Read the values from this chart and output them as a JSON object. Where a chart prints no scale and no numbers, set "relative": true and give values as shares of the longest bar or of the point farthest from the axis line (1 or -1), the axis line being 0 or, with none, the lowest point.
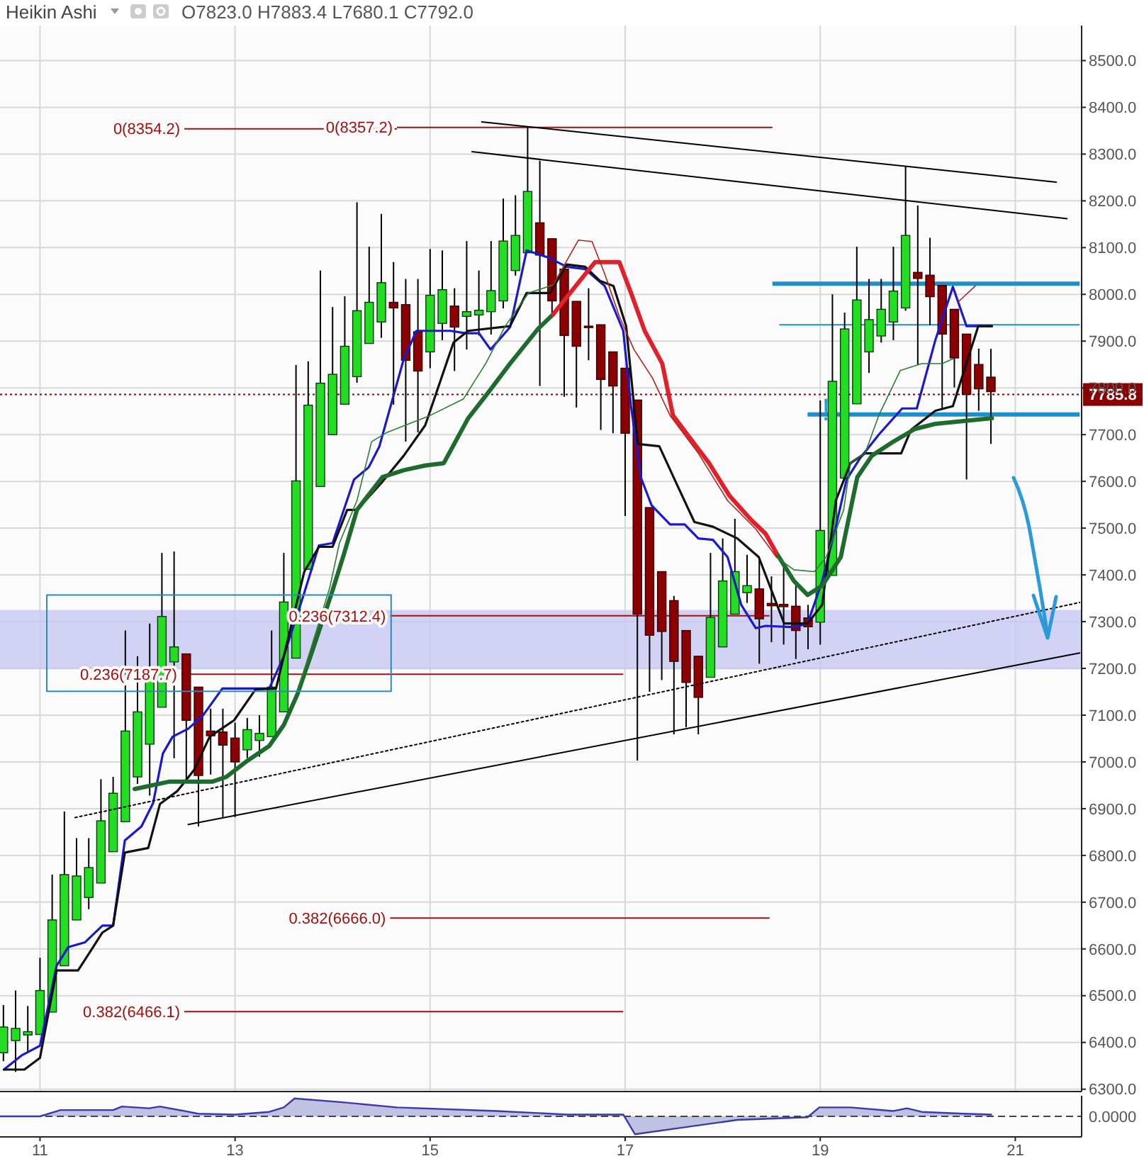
{
  "chart_data": [
    {
      "type": "candlestick",
      "title": "Heikin Ashi",
      "subtitle": "O7823.0 H7883.4 L7680.1 C7792.0",
      "x": [
        10.625,
        10.75,
        10.875,
        11,
        11.125,
        11.25,
        11.375,
        11.5,
        11.625,
        11.75,
        11.875,
        12,
        12.125,
        12.25,
        12.375,
        12.5,
        12.625,
        12.75,
        12.875,
        13,
        13.125,
        13.25,
        13.375,
        13.5,
        13.625,
        13.75,
        13.875,
        14,
        14.125,
        14.25,
        14.375,
        14.5,
        14.625,
        14.75,
        14.875,
        15,
        15.125,
        15.25,
        15.375,
        15.5,
        15.625,
        15.75,
        15.875,
        16,
        16.125,
        16.25,
        16.375,
        16.5,
        16.625,
        16.75,
        16.875,
        17,
        17.125,
        17.25,
        17.375,
        17.5,
        17.625,
        17.75,
        17.875,
        18,
        18.125,
        18.25,
        18.375,
        18.5,
        18.625,
        18.75,
        18.875,
        19,
        19.125,
        19.25,
        19.375,
        19.5,
        19.625,
        19.75,
        19.875,
        20,
        20.125,
        20.25,
        20.375,
        20.5,
        20.625,
        20.75
      ],
      "ohlc": [
        [
          6378,
          6480,
          6360,
          6433
        ],
        [
          6404,
          6511,
          6337,
          6430
        ],
        [
          6416,
          6478,
          6378,
          6423
        ],
        [
          6417,
          6581,
          6417,
          6511
        ],
        [
          6465,
          6759,
          6465,
          6662
        ],
        [
          6564,
          6894,
          6564,
          6759
        ],
        [
          6662,
          6837,
          6662,
          6756
        ],
        [
          6710,
          6837,
          6685,
          6774
        ],
        [
          6741,
          6963,
          6741,
          6874
        ],
        [
          6808,
          6968,
          6808,
          6933
        ],
        [
          6872,
          7281,
          6872,
          7066
        ],
        [
          6968,
          7226,
          6953,
          7107
        ],
        [
          7038,
          7296,
          6928,
          7195
        ],
        [
          7117,
          7447,
          7117,
          7311
        ],
        [
          7214,
          7450,
          7008,
          7246
        ],
        [
          7231,
          7231,
          6963,
          7089
        ],
        [
          7160,
          7160,
          6862,
          6971
        ],
        [
          7066,
          7114,
          6973,
          7056
        ],
        [
          7064,
          7114,
          6882,
          7036
        ],
        [
          7051,
          7084,
          6882,
          7000
        ],
        [
          7026,
          7094,
          7008,
          7069
        ],
        [
          7046,
          7100,
          7011,
          7061
        ],
        [
          7054,
          7281,
          7054,
          7160
        ],
        [
          7107,
          7447,
          7107,
          7342
        ],
        [
          7222,
          7849,
          7222,
          7601
        ],
        [
          7412,
          7857,
          7412,
          7763
        ],
        [
          7589,
          8051,
          7589,
          7810
        ],
        [
          7700,
          7973,
          7700,
          7829
        ],
        [
          7765,
          7996,
          7765,
          7889
        ],
        [
          7824,
          8197,
          7811,
          7965
        ],
        [
          7895,
          8102,
          7895,
          7983
        ],
        [
          7941,
          8172,
          7907,
          8025
        ],
        [
          7983,
          8069,
          7764,
          7971
        ],
        [
          7978,
          8033,
          7685,
          7859
        ],
        [
          7920,
          8033,
          7705,
          7836
        ],
        [
          7877,
          8097,
          7842,
          7998
        ],
        [
          7938,
          8094,
          7902,
          8010
        ],
        [
          7975,
          8013,
          7836,
          7930
        ],
        [
          7953,
          8114,
          7882,
          7963
        ],
        [
          7956,
          8051,
          7912,
          7966
        ],
        [
          7963,
          8114,
          7914,
          8008
        ],
        [
          7986,
          8205,
          7970,
          8114
        ],
        [
          8051,
          8212,
          8040,
          8126
        ],
        [
          8089,
          8359,
          8089,
          8220
        ],
        [
          8153,
          8286,
          7804,
          8084
        ],
        [
          8119,
          8119,
          7950,
          7986
        ],
        [
          8054,
          8054,
          7781,
          7912
        ],
        [
          7985,
          7985,
          7758,
          7889
        ],
        [
          7932,
          8013,
          7859,
          7930
        ],
        [
          7935,
          7935,
          7710,
          7818
        ],
        [
          7877,
          7877,
          7703,
          7804
        ],
        [
          7842,
          7842,
          7526,
          7703
        ],
        [
          7774,
          7774,
          7003,
          7316
        ],
        [
          7544,
          7544,
          7150,
          7271
        ],
        [
          7407,
          7407,
          7175,
          7279
        ],
        [
          7345,
          7355,
          7059,
          7215
        ],
        [
          7281,
          7281,
          7074,
          7170
        ],
        [
          7226,
          7226,
          7059,
          7138
        ],
        [
          7181,
          7447,
          7181,
          7309
        ],
        [
          7246,
          7478,
          7246,
          7387
        ],
        [
          7316,
          7520,
          7316,
          7407
        ],
        [
          7362,
          7443,
          7340,
          7377
        ],
        [
          7370,
          7433,
          7210,
          7306
        ],
        [
          7339,
          7397,
          7256,
          7334
        ],
        [
          7337,
          7420,
          7251,
          7332
        ],
        [
          7333,
          7387,
          7220,
          7281
        ],
        [
          7308,
          7336,
          7241,
          7289
        ],
        [
          7299,
          7773,
          7251,
          7495
        ],
        [
          7399,
          8000,
          7399,
          7814
        ],
        [
          7607,
          7961,
          7607,
          7926
        ],
        [
          7766,
          8102,
          7766,
          7988
        ],
        [
          7877,
          8033,
          7832,
          7946
        ],
        [
          7911,
          8033,
          7897,
          7968
        ],
        [
          7941,
          8102,
          7902,
          8007
        ],
        [
          7971,
          8274,
          7965,
          8126
        ],
        [
          8047,
          8190,
          7850,
          8034
        ],
        [
          8041,
          8121,
          7934,
          7995
        ],
        [
          8019,
          8019,
          7756,
          7915
        ],
        [
          7968,
          7968,
          7801,
          7864
        ],
        [
          7915,
          7915,
          7604,
          7786
        ],
        [
          7850,
          7884,
          7751,
          7798
        ],
        [
          7823,
          7883.4,
          7680.1,
          7792
        ]
      ],
      "colors": [
        "#22dd22",
        "#22dd22",
        "#22dd22",
        "#22dd22",
        "#22dd22",
        "#22dd22",
        "#22dd22",
        "#22dd22",
        "#22dd22",
        "#22dd22",
        "#22dd22",
        "#22dd22",
        "#22dd22",
        "#22dd22",
        "#22dd22",
        "#8b0000",
        "#8b0000",
        "#8b0000",
        "#8b0000",
        "#8b0000",
        "#22dd22",
        "#22dd22",
        "#22dd22",
        "#22dd22",
        "#22dd22",
        "#22dd22",
        "#22dd22",
        "#22dd22",
        "#22dd22",
        "#22dd22",
        "#22dd22",
        "#22dd22",
        "#8b0000",
        "#8b0000",
        "#8b0000",
        "#22dd22",
        "#22dd22",
        "#8b0000",
        "#22dd22",
        "#22dd22",
        "#22dd22",
        "#22dd22",
        "#22dd22",
        "#22dd22",
        "#8b0000",
        "#8b0000",
        "#8b0000",
        "#8b0000",
        "#8b0000",
        "#8b0000",
        "#8b0000",
        "#8b0000",
        "#8b0000",
        "#8b0000",
        "#8b0000",
        "#8b0000",
        "#8b0000",
        "#8b0000",
        "#22dd22",
        "#22dd22",
        "#22dd22",
        "#22dd22",
        "#8b0000",
        "#8b0000",
        "#8b0000",
        "#8b0000",
        "#8b0000",
        "#22dd22",
        "#22dd22",
        "#22dd22",
        "#22dd22",
        "#22dd22",
        "#22dd22",
        "#22dd22",
        "#22dd22",
        "#8b0000",
        "#8b0000",
        "#8b0000",
        "#8b0000",
        "#8b0000",
        "#8b0000",
        "#8b0000"
      ],
      "series": [
        {
          "type": "line",
          "color": "#1a1acc",
          "x": [
            10.63,
            10.81,
            11.0,
            11.17,
            11.29,
            11.46,
            11.64,
            11.75,
            11.87,
            12.04,
            12.16,
            12.26,
            12.36,
            12.52,
            12.67,
            12.87,
            13.35,
            13.5,
            13.71,
            13.86,
            14.0,
            14.22,
            14.37,
            14.48,
            14.73,
            14.86,
            15.21,
            15.36,
            15.5,
            15.62,
            15.82,
            15.99,
            16.21,
            16.4,
            16.59,
            16.79,
            16.98,
            17.06,
            17.16,
            17.27,
            17.46,
            17.61,
            17.75,
            17.9,
            18.05,
            18.19,
            18.34,
            18.44,
            18.73,
            18.87,
            19.02,
            19.16,
            19.27,
            19.41,
            19.6,
            19.84,
            19.99,
            20.18,
            20.36,
            20.5,
            20.76
          ],
          "values": [
            6342,
            6372,
            6393,
            6564,
            6604,
            6614,
            6650,
            6650,
            6832,
            6862,
            6912,
            7018,
            7054,
            7071,
            7099,
            7157,
            7157,
            7226,
            7362,
            7463,
            7468,
            7604,
            7630,
            7675,
            7862,
            7922,
            7922,
            7917,
            7917,
            7882,
            7930,
            8094,
            8079,
            8059,
            8054,
            8018,
            7922,
            7761,
            7609,
            7549,
            7508,
            7508,
            7478,
            7475,
            7438,
            7336,
            7286,
            7291,
            7288,
            7296,
            7387,
            7503,
            7604,
            7650,
            7700,
            7756,
            7756,
            7902,
            8016,
            7932,
            7932
          ]
        },
        {
          "type": "line",
          "color": "#111111",
          "x": [
            10.63,
            10.84,
            11.0,
            11.17,
            11.39,
            11.53,
            11.64,
            11.75,
            11.87,
            12.11,
            12.23,
            12.41,
            12.58,
            12.74,
            12.99,
            13.21,
            13.42,
            13.71,
            13.86,
            14.0,
            14.15,
            14.25,
            14.51,
            14.73,
            14.95,
            15.24,
            15.39,
            15.82,
            15.99,
            16.23,
            16.4,
            16.59,
            16.74,
            16.88,
            17.01,
            17.13,
            17.35,
            17.54,
            17.71,
            17.9,
            18.15,
            18.37,
            18.63,
            18.87,
            19.02,
            19.16,
            19.31,
            19.46,
            19.83,
            19.93,
            20.18,
            20.36,
            20.62,
            20.76
          ],
          "values": [
            6342,
            6342,
            6367,
            6554,
            6554,
            6599,
            6635,
            6650,
            6806,
            6816,
            6910,
            6938,
            6983,
            7054,
            7089,
            7155,
            7157,
            7407,
            7460,
            7460,
            7539,
            7539,
            7599,
            7655,
            7720,
            7897,
            7922,
            7932,
            8003,
            8003,
            8064,
            8059,
            8029,
            8018,
            7932,
            7680,
            7675,
            7589,
            7513,
            7503,
            7478,
            7438,
            7296,
            7296,
            7336,
            7559,
            7639,
            7660,
            7660,
            7710,
            7751,
            7761,
            7932,
            7932
          ]
        },
        {
          "type": "line",
          "color": "#1e6b2e",
          "x": [
            11.97,
            12.33,
            12.77,
            12.91,
            13.13,
            13.35,
            13.5,
            13.64,
            13.79,
            14.0,
            14.12,
            14.25,
            14.51,
            14.73,
            14.95,
            15.14,
            15.39,
            15.6,
            15.82,
            16.11,
            16.26,
            17.4,
            18.55,
            18.73,
            18.87,
            19.02,
            19.21,
            19.31,
            19.38,
            19.53,
            19.75,
            19.97,
            20.18,
            20.47,
            20.76
          ],
          "values": [
            6942,
            6958,
            6958,
            6968,
            7003,
            7034,
            7079,
            7145,
            7236,
            7367,
            7447,
            7539,
            7609,
            7624,
            7634,
            7639,
            7735,
            7791,
            7852,
            7927,
            7957,
            null,
            7447,
            7387,
            7357,
            7377,
            7438,
            7539,
            7609,
            7655,
            7685,
            7712,
            7723,
            7729,
            7735
          ]
        },
        {
          "type": "line",
          "color": "#e0202a",
          "x": [
            16.26,
            16.55,
            16.69,
            16.94,
            17.06,
            17.2,
            17.38,
            17.49,
            17.71,
            17.86,
            18.07,
            18.29,
            18.44,
            18.55
          ],
          "values": [
            7957,
            8033,
            8069,
            8069,
            8003,
            7922,
            7852,
            7741,
            7680,
            7639,
            7569,
            7518,
            7488,
            7447
          ]
        },
        {
          "type": "line",
          "color": "#2e7d32",
          "x": [
            13.64,
            13.97,
            14.07,
            14.25,
            14.4,
            14.56,
            15.0,
            15.34,
            15.57,
            15.77,
            16.01,
            16.26,
            17.4,
            18.55,
            18.73,
            18.94,
            19.06,
            19.24,
            19.31,
            19.46,
            19.6,
            19.82,
            20.04,
            20.25,
            20.36
          ],
          "values": [
            7150,
            7372,
            7468,
            7559,
            7685,
            7705,
            7741,
            7776,
            7852,
            7932,
            8003,
            8020,
            null,
            7438,
            7411,
            7407,
            7438,
            7539,
            7639,
            7660,
            7741,
            7837,
            7852,
            7852,
            7862
          ]
        },
        {
          "type": "line",
          "color": "#b22222",
          "x": [
            16.26,
            16.45,
            16.52,
            16.66,
            16.79,
            16.94,
            17.09,
            17.28,
            17.46,
            17.75,
            18.05,
            18.34,
            18.55,
            19.5,
            20.41,
            20.59
          ],
          "values": [
            8020,
            8090,
            8116,
            8113,
            8044,
            7953,
            7882,
            7821,
            7741,
            7660,
            7559,
            7498,
            7438,
            null,
            7983,
            8018
          ]
        },
        {
          "type": "line",
          "color": "#000000",
          "x": [
            15.53,
            21.42
          ],
          "values": [
            8369,
            8240
          ]
        },
        {
          "type": "line",
          "color": "#000000",
          "x": [
            15.43,
            21.53
          ],
          "values": [
            8305,
            8162
          ]
        },
        {
          "type": "line",
          "color": "#000000",
          "line_style": "dotted",
          "x": [
            11.36,
            21.66
          ],
          "values": [
            6881,
            7341
          ]
        },
        {
          "type": "line",
          "color": "#000000",
          "x": [
            12.52,
            21.66
          ],
          "values": [
            6866,
            7233
          ]
        }
      ],
      "xlim": [
        10.59,
        21.68
      ],
      "xticks": [
        11,
        13,
        15,
        17,
        19,
        21
      ],
      "ylim": [
        6295,
        8575
      ],
      "yticks": [
        {
          "value": 6300,
          "label": "6300.0"
        },
        {
          "value": 6400,
          "label": "6400.0"
        },
        {
          "value": 6500,
          "label": "6500.0"
        },
        {
          "value": 6600,
          "label": "6600.0"
        },
        {
          "value": 6700,
          "label": "6700.0"
        },
        {
          "value": 6800,
          "label": "6800.0"
        },
        {
          "value": 6900,
          "label": "6900.0"
        },
        {
          "value": 7000,
          "label": "7000.0"
        },
        {
          "value": 7100,
          "label": "7100.0"
        },
        {
          "value": 7200,
          "label": "7200.0"
        },
        {
          "value": 7300,
          "label": "7300.0"
        },
        {
          "value": 7400,
          "label": "7400.0"
        },
        {
          "value": 7500,
          "label": "7500.0"
        },
        {
          "value": 7600,
          "label": "7600.0"
        },
        {
          "value": 7700,
          "label": "7700.0"
        },
        {
          "value": 7800,
          "label": "7800.0"
        },
        {
          "value": 7900,
          "label": "7900.0"
        },
        {
          "value": 8000,
          "label": "8000.0"
        },
        {
          "value": 8100,
          "label": "8100.0"
        },
        {
          "value": 8200,
          "label": "8200.0"
        },
        {
          "value": 8300,
          "label": "8300.0"
        },
        {
          "value": 8400,
          "label": "8400.0"
        },
        {
          "value": 8500,
          "label": "8500.0"
        }
      ],
      "grid": true,
      "tick_labels": "y",
      "bands": [
        {
          "axis": "y",
          "from": 7198,
          "to": 7325,
          "color": "#c8c8f2"
        }
      ],
      "ref_lines": [
        {
          "axis": "y",
          "value": 8354.2,
          "label": "0(8354.2)",
          "color": "#a01010"
        },
        {
          "axis": "y",
          "value": 8357.2,
          "label": "0(8357.2)",
          "color": "#a01010"
        },
        {
          "axis": "y",
          "value": 7312.4,
          "label": "0.236(7312.4)",
          "color": "#a01010"
        },
        {
          "axis": "y",
          "value": 7187.7,
          "label": "0.236(7187.7)",
          "color": "#a01010"
        },
        {
          "axis": "y",
          "value": 6666.0,
          "label": "0.382(6666.0)",
          "color": "#a01010"
        },
        {
          "axis": "y",
          "value": 6466.1,
          "label": "0.382(6466.1)",
          "color": "#a01010"
        },
        {
          "axis": "y",
          "value": 8023,
          "color": "#1e8fc8"
        },
        {
          "axis": "y",
          "value": 7935,
          "color": "#1e8fc8"
        },
        {
          "axis": "y",
          "value": 7743,
          "color": "#1e8fc8"
        },
        {
          "axis": "y",
          "value": 7785.8,
          "label": "7785.8",
          "color": "#8b0000",
          "line_style": "dotted"
        }
      ],
      "annotations": [
        "!"
      ]
    },
    {
      "type": "area",
      "x": [
        10.59,
        11.0,
        11.21,
        11.75,
        11.84,
        12.12,
        12.23,
        12.48,
        12.62,
        13.0,
        13.35,
        13.5,
        13.61,
        14.08,
        14.66,
        15.68,
        16.4,
        16.98,
        17.1,
        17.56,
        18.15,
        18.87,
        18.99,
        19.31,
        19.75,
        19.89,
        20.04,
        20.47,
        20.76
      ],
      "series": [
        {
          "color": "#3a3aa8",
          "values": [
            0,
            0,
            0.35,
            0.35,
            0.55,
            0.45,
            0.55,
            0.3,
            0.15,
            0.1,
            0.25,
            0.5,
            1,
            0.8,
            0.5,
            0.3,
            0.1,
            0.1,
            -1,
            -0.65,
            -0.2,
            -0.05,
            0.5,
            0.5,
            0.3,
            0.45,
            0.25,
            0.15,
            0.1
          ]
        }
      ],
      "relative": true,
      "xlim": [
        10.59,
        21.68
      ],
      "xticks": [
        11,
        13,
        15,
        17,
        19,
        21
      ],
      "tick_labels": "x",
      "ref_lines": [
        {
          "axis": "y",
          "value": 0,
          "label": "0.0000",
          "line_style": "dashed",
          "color": "#444444"
        }
      ]
    }
  ]
}
